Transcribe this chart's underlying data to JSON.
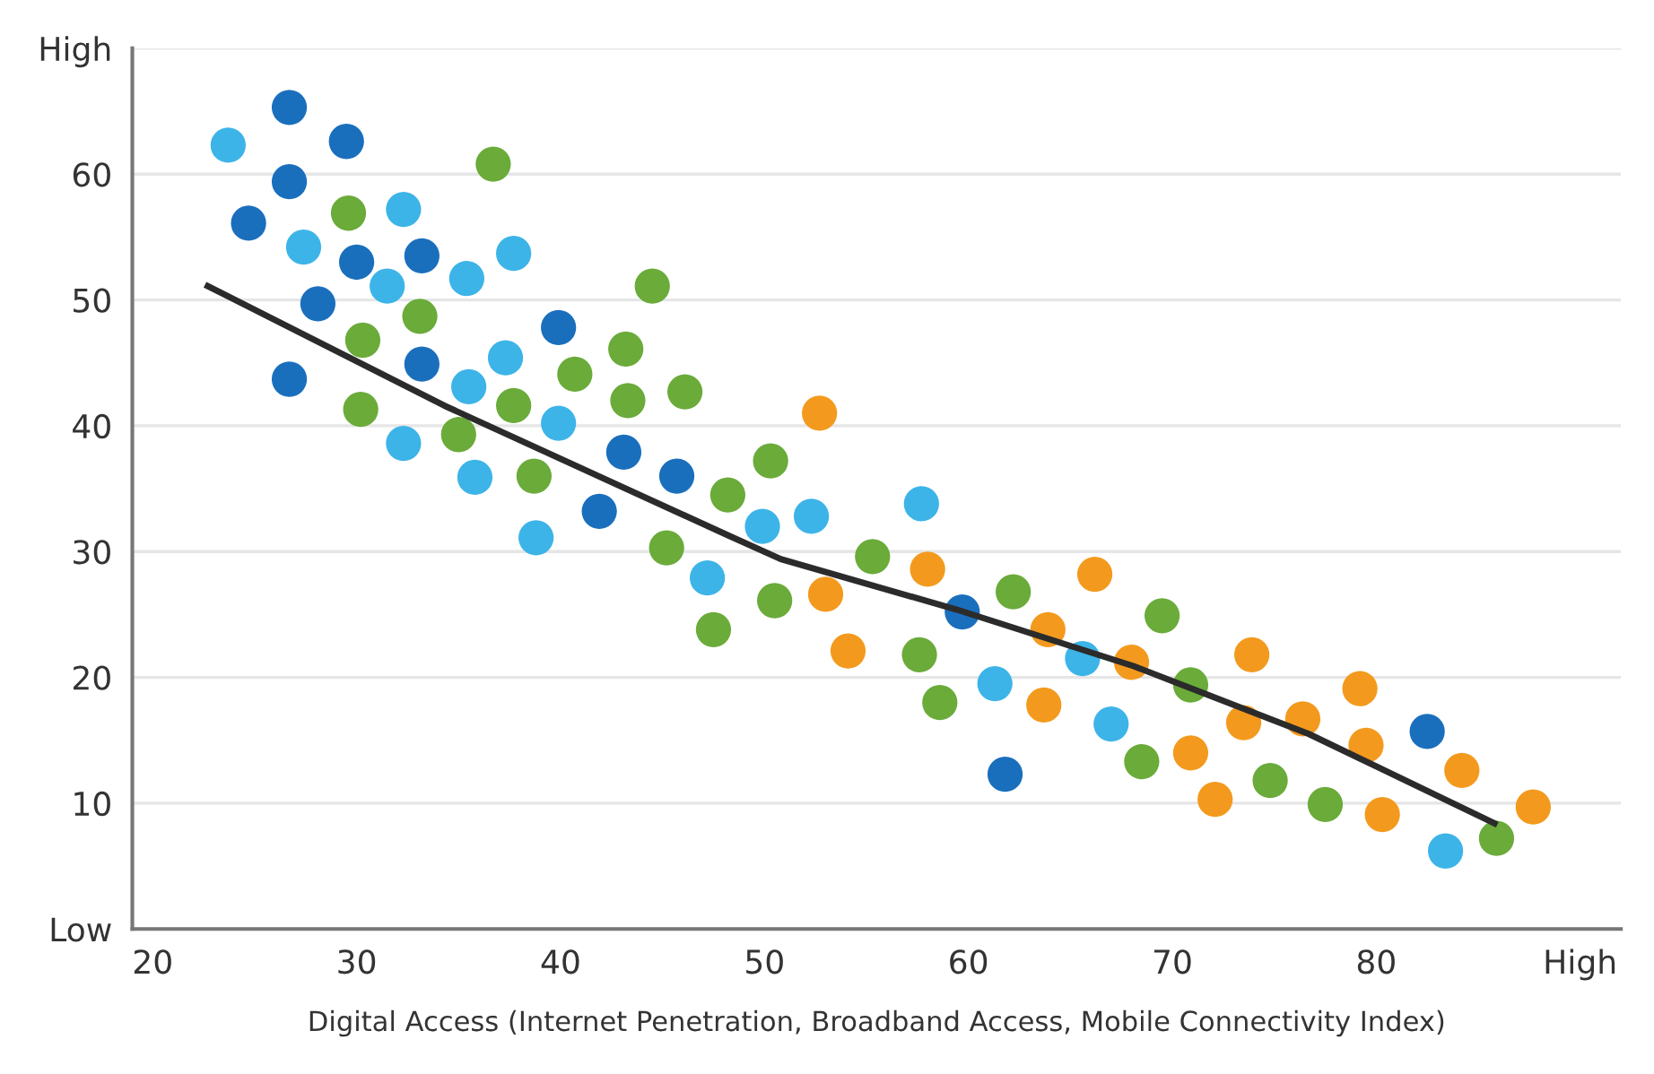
{
  "chart_data": {
    "type": "scatter",
    "xlabel": "Digital Access (Internet Penetration, Broadband Access, Mobile Connectivity Index)",
    "xlim": [
      19,
      92
    ],
    "xticks": [
      20,
      30,
      40,
      50,
      60,
      70,
      80,
      {
        "value": 90,
        "label": "High"
      }
    ],
    "ylim": [
      0,
      70
    ],
    "yticks": [
      {
        "value": 0,
        "label": "Low"
      },
      10,
      20,
      30,
      40,
      50,
      60,
      {
        "value": 70,
        "label": "High"
      }
    ],
    "grid": "y",
    "marker": "circle",
    "series": [
      {
        "color": "#1a6fbd",
        "x": [
          26.7,
          24.7,
          26.7,
          29.5,
          30.0,
          28.1,
          33.2,
          26.7,
          33.2,
          39.9,
          43.1,
          45.7,
          41.9,
          59.7,
          61.8,
          82.5
        ],
        "values": [
          65.3,
          56.1,
          59.4,
          62.6,
          53.0,
          49.7,
          53.5,
          43.7,
          44.9,
          47.8,
          37.9,
          36.0,
          33.2,
          25.2,
          12.3,
          15.7
        ]
      },
      {
        "color": "#3db4e8",
        "x": [
          23.7,
          27.4,
          31.5,
          32.3,
          35.4,
          37.7,
          37.3,
          35.5,
          32.3,
          35.8,
          39.9,
          38.8,
          47.2,
          49.9,
          52.3,
          57.7,
          61.3,
          65.6,
          67.0,
          83.4
        ],
        "values": [
          62.3,
          54.2,
          51.1,
          57.2,
          51.7,
          53.7,
          45.4,
          43.1,
          38.6,
          35.9,
          40.2,
          31.1,
          27.9,
          32.0,
          32.8,
          33.8,
          19.5,
          21.5,
          16.3,
          6.2
        ]
      },
      {
        "color": "#6aab3a",
        "x": [
          29.6,
          36.7,
          30.3,
          33.1,
          30.2,
          35.0,
          37.7,
          40.7,
          43.2,
          43.3,
          46.1,
          44.5,
          38.7,
          45.2,
          47.5,
          48.2,
          50.3,
          50.5,
          55.3,
          62.2,
          57.6,
          58.6,
          69.5,
          70.9,
          68.5,
          74.8,
          77.5,
          85.9
        ],
        "values": [
          56.9,
          60.8,
          46.8,
          48.7,
          41.3,
          39.3,
          41.6,
          44.1,
          46.1,
          42.0,
          42.7,
          51.1,
          36.0,
          30.3,
          23.8,
          34.5,
          37.2,
          26.1,
          29.6,
          26.8,
          21.8,
          18.0,
          24.9,
          19.4,
          13.3,
          11.8,
          9.9,
          7.2
        ]
      },
      {
        "color": "#f39a1e",
        "x": [
          52.7,
          53.0,
          54.1,
          58.0,
          66.2,
          63.9,
          68.0,
          63.7,
          73.9,
          73.5,
          76.4,
          70.9,
          72.1,
          79.2,
          79.5,
          80.3,
          84.2,
          87.7
        ],
        "values": [
          41.0,
          26.6,
          22.1,
          28.6,
          28.2,
          23.8,
          21.2,
          17.8,
          21.8,
          16.4,
          16.7,
          14.0,
          10.3,
          19.1,
          14.6,
          9.1,
          12.6,
          9.7
        ]
      },
      {
        "type": "line",
        "color": "#2b2b2b",
        "marker": "none",
        "x": [
          22.7,
          34.3,
          48.2,
          50.8,
          59.4,
          68.1,
          76.7,
          85.8
        ],
        "values": [
          51.1,
          41.6,
          31.3,
          29.4,
          25.4,
          20.9,
          15.5,
          8.4
        ]
      }
    ]
  }
}
